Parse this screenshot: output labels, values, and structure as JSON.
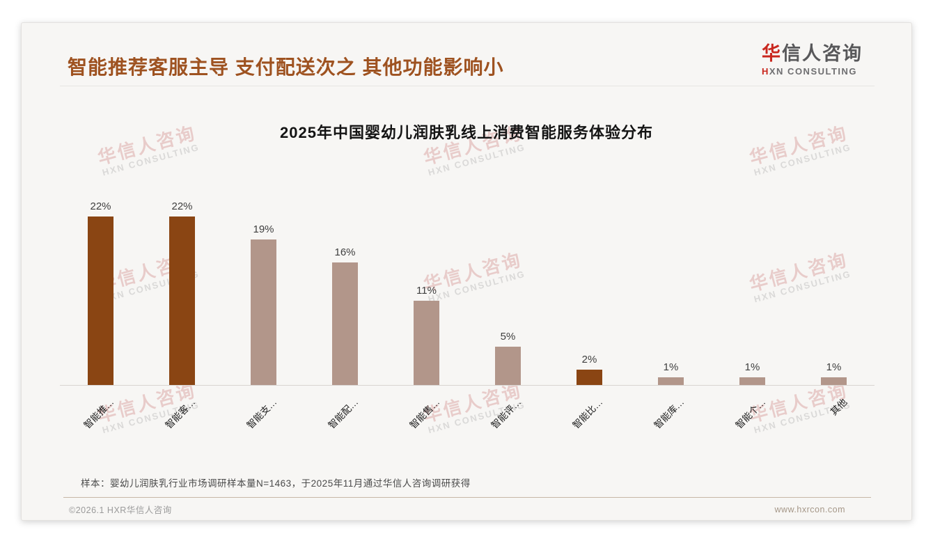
{
  "header": {
    "title": "智能推荐客服主导 支付配送次之 其他功能影响小",
    "logo": {
      "cn_first": "华",
      "cn_rest": "信人咨询",
      "en_first": "H",
      "en_rest": "XN CONSULTING"
    }
  },
  "watermark": {
    "cn": "华信人咨询",
    "en": "HXN CONSULTING"
  },
  "chart_data": {
    "type": "bar",
    "title": "2025年中国婴幼儿润肤乳线上消费智能服务体验分布",
    "categories": [
      "智能推…",
      "智能客…",
      "智能支…",
      "智能配…",
      "智能售…",
      "智能评…",
      "智能比…",
      "智能库…",
      "智能个…",
      "其他"
    ],
    "values": [
      22,
      22,
      19,
      16,
      11,
      5,
      2,
      1,
      1,
      1
    ],
    "value_labels": [
      "22%",
      "22%",
      "19%",
      "16%",
      "11%",
      "5%",
      "2%",
      "1%",
      "1%",
      "1%"
    ],
    "bar_colors": [
      "#8a4513",
      "#8a4513",
      "#b2968a",
      "#b2968a",
      "#b2968a",
      "#b2968a",
      "#8a4513",
      "#b2968a",
      "#b2968a",
      "#b2968a"
    ],
    "highlight_color": "#8a4513",
    "default_color": "#b2968a",
    "ylim": [
      0,
      24
    ],
    "grid": false,
    "legend": false,
    "value_suffix": "%",
    "x_tick_rotation": 45,
    "xlabel": "",
    "ylabel": ""
  },
  "footer": {
    "sample_note": "样本：婴幼儿润肤乳行业市场调研样本量N=1463，于2025年11月通过华信人咨询调研获得",
    "copyright": "©2026.1 HXR华信人咨询",
    "website": "www.hxrcon.com"
  }
}
